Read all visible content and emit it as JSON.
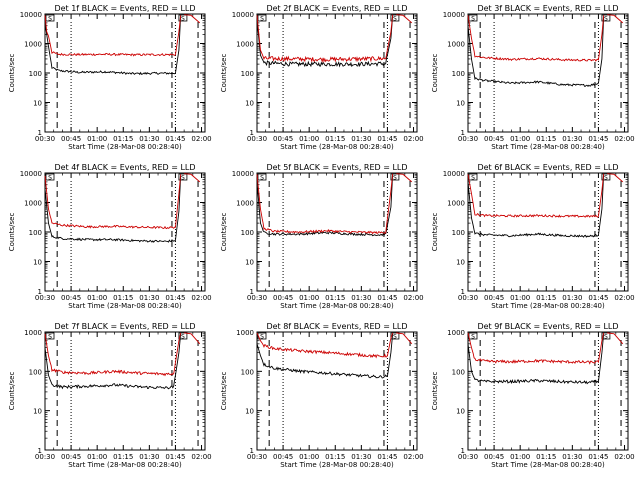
{
  "start_time_label": "Start Time (28-Mar-08 00:28:40)",
  "y_axis_label": "Counts/sec",
  "colors": {
    "events": "#000000",
    "lld": "#cc0000",
    "axis": "#000000"
  },
  "chart_data": [
    {
      "type": "line",
      "title": "Det 1f BLACK = Events, RED = LLD",
      "xlabel": "Start Time (28-Mar-08 00:28:40)",
      "ylabel": "Counts/sec",
      "x_ticks": [
        "00:30",
        "00:45",
        "01:00",
        "01:15",
        "01:30",
        "01:45",
        "02:00"
      ],
      "y_ticks": [
        "1",
        "10",
        "100",
        "1000",
        "10000"
      ],
      "ylim": [
        1,
        10000
      ],
      "yscale": "log",
      "series": [
        {
          "name": "Events",
          "points": [
            [
              0,
              5000
            ],
            [
              2,
              800
            ],
            [
              4,
              150
            ],
            [
              8,
              120
            ],
            [
              20,
              105
            ],
            [
              35,
              110
            ],
            [
              50,
              95
            ],
            [
              65,
              98
            ],
            [
              75,
              98
            ],
            [
              77,
              600
            ],
            [
              78,
              9000
            ]
          ]
        },
        {
          "name": "LLD",
          "points": [
            [
              0,
              9000
            ],
            [
              1,
              2500
            ],
            [
              2,
              1800
            ],
            [
              4,
              500
            ],
            [
              8,
              430
            ],
            [
              20,
              420
            ],
            [
              35,
              430
            ],
            [
              50,
              415
            ],
            [
              65,
              420
            ],
            [
              75,
              420
            ],
            [
              77,
              2500
            ],
            [
              78,
              9000
            ]
          ]
        }
      ],
      "flags": [
        "S",
        "S"
      ]
    },
    {
      "type": "line",
      "title": "Det 2f BLACK = Events, RED = LLD",
      "xlabel": "Start Time (28-Mar-08 00:28:40)",
      "ylabel": "Counts/sec",
      "x_ticks": [
        "00:30",
        "00:45",
        "01:00",
        "01:15",
        "01:30",
        "01:45",
        "02:00"
      ],
      "y_ticks": [
        "1",
        "10",
        "100",
        "1000",
        "10000"
      ],
      "ylim": [
        1,
        10000
      ],
      "yscale": "log",
      "series": [
        {
          "name": "Events",
          "points": [
            [
              0,
              6000
            ],
            [
              2,
              400
            ],
            [
              4,
              220
            ],
            [
              20,
              200
            ],
            [
              40,
              200
            ],
            [
              60,
              200
            ],
            [
              74,
              210
            ],
            [
              77,
              1500
            ],
            [
              78,
              9000
            ]
          ]
        },
        {
          "name": "LLD",
          "points": [
            [
              0,
              9000
            ],
            [
              2,
              600
            ],
            [
              4,
              310
            ],
            [
              20,
              300
            ],
            [
              40,
              290
            ],
            [
              60,
              300
            ],
            [
              74,
              310
            ],
            [
              77,
              2500
            ],
            [
              78,
              9500
            ]
          ]
        }
      ],
      "flags": [
        "S",
        "S"
      ]
    },
    {
      "type": "line",
      "title": "Det 3f BLACK = Events, RED = LLD",
      "xlabel": "Start Time (28-Mar-08 00:28:40)",
      "ylabel": "Counts/sec",
      "x_ticks": [
        "00:30",
        "00:45",
        "01:00",
        "01:15",
        "01:30",
        "01:45",
        "02:00"
      ],
      "y_ticks": [
        "1",
        "10",
        "100",
        "1000",
        "10000"
      ],
      "ylim": [
        1,
        10000
      ],
      "yscale": "log",
      "series": [
        {
          "name": "Events",
          "points": [
            [
              0,
              4000
            ],
            [
              2,
              300
            ],
            [
              4,
              65
            ],
            [
              10,
              55
            ],
            [
              25,
              45
            ],
            [
              40,
              50
            ],
            [
              55,
              40
            ],
            [
              70,
              38
            ],
            [
              75,
              45
            ],
            [
              77,
              300
            ],
            [
              78,
              8000
            ]
          ]
        },
        {
          "name": "LLD",
          "points": [
            [
              0,
              9000
            ],
            [
              2,
              1500
            ],
            [
              4,
              380
            ],
            [
              10,
              330
            ],
            [
              25,
              290
            ],
            [
              40,
              310
            ],
            [
              55,
              280
            ],
            [
              70,
              270
            ],
            [
              75,
              280
            ],
            [
              77,
              2000
            ],
            [
              78,
              9000
            ]
          ]
        }
      ],
      "flags": [
        "S",
        "S"
      ]
    },
    {
      "type": "line",
      "title": "Det 4f BLACK = Events, RED = LLD",
      "xlabel": "Start Time (28-Mar-08 00:28:40)",
      "ylabel": "Counts/sec",
      "x_ticks": [
        "00:30",
        "00:45",
        "01:00",
        "01:15",
        "01:30",
        "01:45",
        "02:00"
      ],
      "y_ticks": [
        "1",
        "10",
        "100",
        "1000",
        "10000"
      ],
      "ylim": [
        1,
        10000
      ],
      "yscale": "log",
      "series": [
        {
          "name": "Events",
          "points": [
            [
              0,
              3000
            ],
            [
              2,
              200
            ],
            [
              4,
              70
            ],
            [
              10,
              60
            ],
            [
              25,
              55
            ],
            [
              40,
              55
            ],
            [
              55,
              50
            ],
            [
              70,
              48
            ],
            [
              75,
              52
            ],
            [
              77,
              500
            ],
            [
              78,
              8000
            ]
          ]
        },
        {
          "name": "LLD",
          "points": [
            [
              0,
              8000
            ],
            [
              2,
              600
            ],
            [
              4,
              200
            ],
            [
              10,
              170
            ],
            [
              25,
              150
            ],
            [
              40,
              155
            ],
            [
              55,
              145
            ],
            [
              70,
              140
            ],
            [
              75,
              145
            ],
            [
              77,
              2000
            ],
            [
              78,
              9000
            ]
          ]
        }
      ],
      "flags": [
        "S",
        "S"
      ]
    },
    {
      "type": "line",
      "title": "Det 5f BLACK = Events, RED = LLD",
      "xlabel": "Start Time (28-Mar-08 00:28:40)",
      "ylabel": "Counts/sec",
      "x_ticks": [
        "00:30",
        "00:45",
        "01:00",
        "01:15",
        "01:30",
        "01:45",
        "02:00"
      ],
      "y_ticks": [
        "1",
        "10",
        "100",
        "1000",
        "10000"
      ],
      "ylim": [
        1,
        10000
      ],
      "yscale": "log",
      "series": [
        {
          "name": "Events",
          "points": [
            [
              0,
              5000
            ],
            [
              2,
              200
            ],
            [
              4,
              95
            ],
            [
              10,
              85
            ],
            [
              25,
              85
            ],
            [
              40,
              95
            ],
            [
              55,
              85
            ],
            [
              70,
              80
            ],
            [
              74,
              82
            ],
            [
              77,
              700
            ],
            [
              78,
              9000
            ]
          ]
        },
        {
          "name": "LLD",
          "points": [
            [
              0,
              9000
            ],
            [
              2,
              600
            ],
            [
              4,
              130
            ],
            [
              10,
              105
            ],
            [
              25,
              100
            ],
            [
              40,
              110
            ],
            [
              55,
              100
            ],
            [
              70,
              95
            ],
            [
              74,
              98
            ],
            [
              77,
              2500
            ],
            [
              78,
              9500
            ]
          ]
        }
      ],
      "flags": [
        "S",
        "S"
      ]
    },
    {
      "type": "line",
      "title": "Det 6f BLACK = Events, RED = LLD",
      "xlabel": "Start Time (28-Mar-08 00:28:40)",
      "ylabel": "Counts/sec",
      "x_ticks": [
        "00:30",
        "00:45",
        "01:00",
        "01:15",
        "01:30",
        "01:45",
        "02:00"
      ],
      "y_ticks": [
        "1",
        "10",
        "100",
        "1000",
        "10000"
      ],
      "ylim": [
        1,
        10000
      ],
      "yscale": "log",
      "series": [
        {
          "name": "Events",
          "points": [
            [
              0,
              5000
            ],
            [
              2,
              300
            ],
            [
              4,
              90
            ],
            [
              10,
              80
            ],
            [
              25,
              75
            ],
            [
              40,
              85
            ],
            [
              55,
              75
            ],
            [
              70,
              72
            ],
            [
              75,
              78
            ],
            [
              77,
              600
            ],
            [
              78,
              9000
            ]
          ]
        },
        {
          "name": "LLD",
          "points": [
            [
              0,
              9000
            ],
            [
              2,
              2000
            ],
            [
              4,
              400
            ],
            [
              10,
              360
            ],
            [
              25,
              350
            ],
            [
              40,
              360
            ],
            [
              55,
              345
            ],
            [
              70,
              340
            ],
            [
              75,
              345
            ],
            [
              77,
              2500
            ],
            [
              78,
              9500
            ]
          ]
        }
      ],
      "flags": [
        "S",
        "S"
      ]
    },
    {
      "type": "line",
      "title": "Det 7f BLACK = Events, RED = LLD",
      "xlabel": "Start Time (28-Mar-08 00:28:40)",
      "ylabel": "Counts/sec",
      "x_ticks": [
        "00:30",
        "00:45",
        "01:00",
        "01:15",
        "01:30",
        "01:45",
        "02:00"
      ],
      "y_ticks": [
        "1",
        "10",
        "100",
        "1000"
      ],
      "ylim": [
        1,
        1000
      ],
      "yscale": "log",
      "series": [
        {
          "name": "Events",
          "points": [
            [
              0,
              400
            ],
            [
              2,
              80
            ],
            [
              4,
              45
            ],
            [
              10,
              40
            ],
            [
              25,
              42
            ],
            [
              40,
              45
            ],
            [
              55,
              40
            ],
            [
              70,
              38
            ],
            [
              74,
              40
            ],
            [
              77,
              300
            ],
            [
              78,
              900
            ]
          ]
        },
        {
          "name": "LLD",
          "points": [
            [
              0,
              900
            ],
            [
              2,
              250
            ],
            [
              4,
              110
            ],
            [
              10,
              95
            ],
            [
              25,
              90
            ],
            [
              40,
              100
            ],
            [
              55,
              90
            ],
            [
              70,
              85
            ],
            [
              74,
              88
            ],
            [
              77,
              600
            ],
            [
              78,
              950
            ]
          ]
        }
      ],
      "flags": [
        "S",
        "S"
      ]
    },
    {
      "type": "line",
      "title": "Det 8f BLACK = Events, RED = LLD",
      "xlabel": "Start Time (28-Mar-08 00:28:40)",
      "ylabel": "Counts/sec",
      "x_ticks": [
        "00:30",
        "00:45",
        "01:00",
        "01:15",
        "01:30",
        "01:45",
        "02:00"
      ],
      "y_ticks": [
        "1",
        "10",
        "100",
        "1000"
      ],
      "ylim": [
        1,
        1000
      ],
      "yscale": "log",
      "series": [
        {
          "name": "Events",
          "points": [
            [
              0,
              500
            ],
            [
              2,
              250
            ],
            [
              4,
              150
            ],
            [
              10,
              120
            ],
            [
              25,
              100
            ],
            [
              40,
              90
            ],
            [
              55,
              80
            ],
            [
              70,
              72
            ],
            [
              75,
              75
            ],
            [
              77,
              300
            ],
            [
              78,
              900
            ]
          ]
        },
        {
          "name": "LLD",
          "points": [
            [
              0,
              950
            ],
            [
              2,
              600
            ],
            [
              4,
              450
            ],
            [
              10,
              380
            ],
            [
              25,
              330
            ],
            [
              40,
              300
            ],
            [
              55,
              270
            ],
            [
              70,
              240
            ],
            [
              75,
              250
            ],
            [
              77,
              700
            ],
            [
              78,
              950
            ]
          ]
        }
      ],
      "flags": [
        "S",
        "S"
      ]
    },
    {
      "type": "line",
      "title": "Det 9f BLACK = Events, RED = LLD",
      "xlabel": "Start Time (28-Mar-08 00:28:40)",
      "ylabel": "Counts/sec",
      "x_ticks": [
        "00:30",
        "00:45",
        "01:00",
        "01:15",
        "01:30",
        "01:45",
        "02:00"
      ],
      "y_ticks": [
        "1",
        "10",
        "100",
        "1000"
      ],
      "ylim": [
        1,
        1000
      ],
      "yscale": "log",
      "series": [
        {
          "name": "Events",
          "points": [
            [
              0,
              500
            ],
            [
              2,
              100
            ],
            [
              4,
              60
            ],
            [
              10,
              55
            ],
            [
              25,
              55
            ],
            [
              40,
              58
            ],
            [
              55,
              54
            ],
            [
              70,
              52
            ],
            [
              75,
              55
            ],
            [
              77,
              300
            ],
            [
              78,
              900
            ]
          ]
        },
        {
          "name": "LLD",
          "points": [
            [
              0,
              950
            ],
            [
              2,
              400
            ],
            [
              4,
              200
            ],
            [
              10,
              180
            ],
            [
              25,
              175
            ],
            [
              40,
              185
            ],
            [
              55,
              175
            ],
            [
              70,
              170
            ],
            [
              75,
              172
            ],
            [
              77,
              600
            ],
            [
              78,
              950
            ]
          ]
        }
      ],
      "flags": [
        "S",
        "S"
      ]
    }
  ]
}
